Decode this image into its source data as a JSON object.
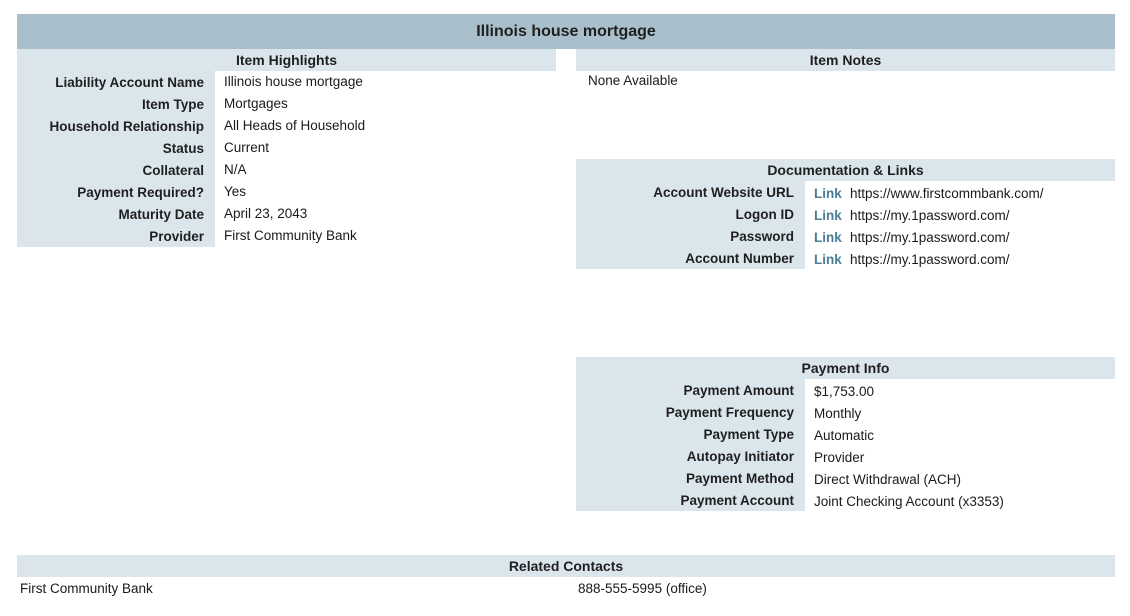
{
  "title": "Illinois house mortgage",
  "highlights": {
    "heading": "Item Highlights",
    "rows": [
      {
        "label": "Liability Account Name",
        "value": "Illinois house mortgage"
      },
      {
        "label": "Item Type",
        "value": "Mortgages"
      },
      {
        "label": "Household Relationship",
        "value": "All Heads of Household"
      },
      {
        "label": "Status",
        "value": "Current"
      },
      {
        "label": "Collateral",
        "value": "N/A"
      },
      {
        "label": "Payment Required?",
        "value": "Yes"
      },
      {
        "label": "Maturity Date",
        "value": "April 23, 2043"
      },
      {
        "label": "Provider",
        "value": "First Community Bank"
      }
    ]
  },
  "notes": {
    "heading": "Item Notes",
    "text": "None Available"
  },
  "docs": {
    "heading": "Documentation & Links",
    "rows": [
      {
        "label": "Account Website URL",
        "link": "Link",
        "url": "https://www.firstcommbank.com/"
      },
      {
        "label": "Logon ID",
        "link": "Link",
        "url": "https://my.1password.com/"
      },
      {
        "label": "Password",
        "link": "Link",
        "url": "https://my.1password.com/"
      },
      {
        "label": "Account Number",
        "link": "Link",
        "url": "https://my.1password.com/"
      }
    ]
  },
  "payment": {
    "heading": "Payment Info",
    "rows": [
      {
        "label": "Payment Amount",
        "value": "$1,753.00"
      },
      {
        "label": "Payment Frequency",
        "value": "Monthly"
      },
      {
        "label": "Payment Type",
        "value": "Automatic"
      },
      {
        "label": "Autopay Initiator",
        "value": "Provider"
      },
      {
        "label": "Payment Method",
        "value": "Direct Withdrawal (ACH)"
      },
      {
        "label": "Payment Account",
        "value": "Joint Checking Account (x3353)"
      }
    ]
  },
  "contacts": {
    "heading": "Related Contacts",
    "rows": [
      {
        "name": "First Community Bank",
        "phone": "888-555-5995 (office)"
      }
    ]
  }
}
